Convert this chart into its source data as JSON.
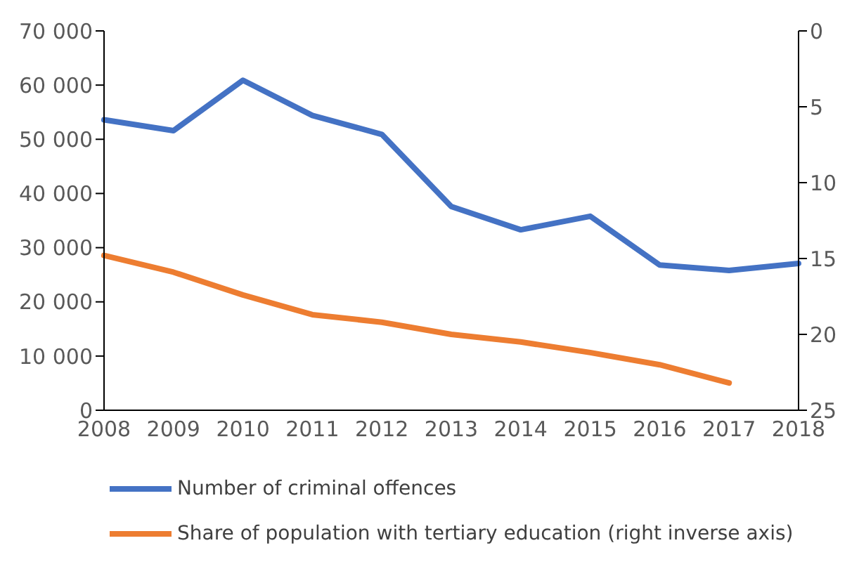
{
  "chart_data": {
    "type": "line",
    "categories": [
      "2008",
      "2009",
      "2010",
      "2011",
      "2012",
      "2013",
      "2014",
      "2015",
      "2016",
      "2017",
      "2018"
    ],
    "series": [
      {
        "name": "Number of criminal offences",
        "color": "#4472c4",
        "values": [
          53600,
          51600,
          60900,
          54400,
          50900,
          37600,
          33300,
          35800,
          26800,
          25800,
          27100
        ]
      },
      {
        "name": "Share of population with tertiary education (right inverse axis)",
        "color": "#ed7d31",
        "axis": "y2",
        "values": [
          14.8,
          15.9,
          17.4,
          18.7,
          19.2,
          20.0,
          20.5,
          21.2,
          22.0,
          23.2,
          null
        ]
      }
    ],
    "ylim": [
      0,
      70000
    ],
    "yticks": [
      {
        "value": 0,
        "label": "0"
      },
      {
        "value": 10000,
        "label": "10 000"
      },
      {
        "value": 20000,
        "label": "20 000"
      },
      {
        "value": 30000,
        "label": "30 000"
      },
      {
        "value": 40000,
        "label": "40 000"
      },
      {
        "value": 50000,
        "label": "50 000"
      },
      {
        "value": 60000,
        "label": "60 000"
      },
      {
        "value": 70000,
        "label": "70 000"
      }
    ],
    "y2lim": [
      25,
      0
    ],
    "y2ticks": [
      0,
      5,
      10,
      15,
      20,
      25
    ],
    "grid": false,
    "legend": "bottom",
    "marker": "none",
    "line_style": "solid"
  }
}
